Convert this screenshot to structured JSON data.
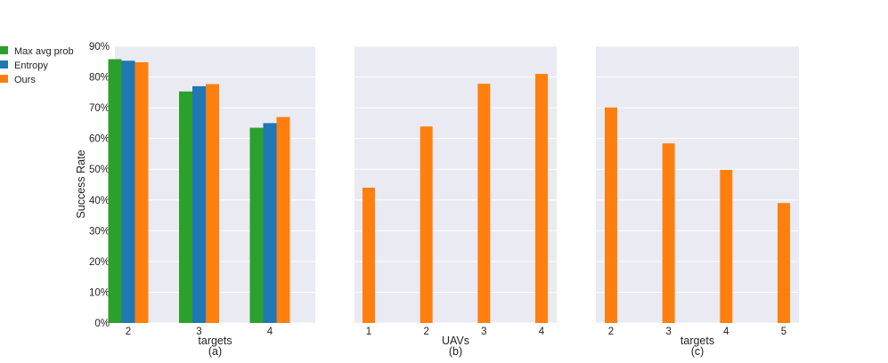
{
  "colors": {
    "green": "#2ca02c",
    "blue": "#1f77b4",
    "orange": "#ff7f0e",
    "panel_bg": "#eaeaf2",
    "grid": "#ffffff"
  },
  "legend": {
    "items": [
      {
        "label": "Max avg prob",
        "color": "#2ca02c"
      },
      {
        "label": "Entropy",
        "color": "#1f77b4"
      },
      {
        "label": "Ours",
        "color": "#ff7f0e"
      }
    ]
  },
  "ylabel": "Success Rate",
  "yticks": [
    "0%",
    "10%",
    "20%",
    "30%",
    "40%",
    "50%",
    "60%",
    "70%",
    "80%",
    "90%"
  ],
  "chart_data": [
    {
      "type": "bar",
      "panel_label": "(a)",
      "xlabel": "targets",
      "categories": [
        "2",
        "3",
        "4"
      ],
      "ylim": [
        0,
        90
      ],
      "series": [
        {
          "name": "Max avg prob",
          "color": "#2ca02c",
          "values": [
            85.8,
            75.3,
            63.5
          ]
        },
        {
          "name": "Entropy",
          "color": "#1f77b4",
          "values": [
            85.3,
            77.0,
            65.0
          ]
        },
        {
          "name": "Ours",
          "color": "#ff7f0e",
          "values": [
            84.8,
            77.7,
            67.0
          ]
        }
      ]
    },
    {
      "type": "bar",
      "panel_label": "(b)",
      "xlabel": "UAVs",
      "categories": [
        "1",
        "2",
        "3",
        "4"
      ],
      "ylim": [
        0,
        90
      ],
      "series": [
        {
          "name": "Ours",
          "color": "#ff7f0e",
          "values": [
            44.0,
            63.9,
            77.8,
            81.0
          ]
        }
      ]
    },
    {
      "type": "bar",
      "panel_label": "(c)",
      "xlabel": "targets",
      "categories": [
        "2",
        "3",
        "4",
        "5"
      ],
      "ylim": [
        0,
        90
      ],
      "series": [
        {
          "name": "Ours",
          "color": "#ff7f0e",
          "values": [
            70.1,
            58.4,
            49.8,
            39.0
          ]
        }
      ]
    }
  ]
}
